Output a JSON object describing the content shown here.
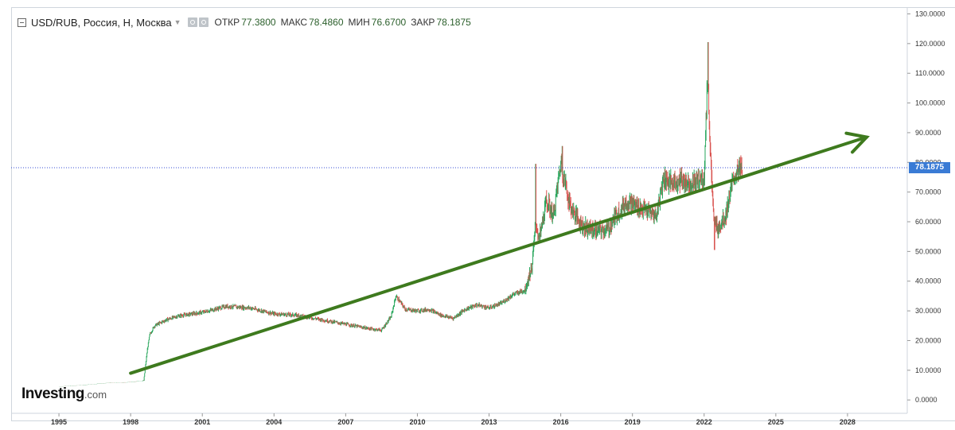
{
  "header": {
    "symbol": "USD/RUB, Россия, Н, Москва",
    "open_label": "ОТКР",
    "open_value": "77.3800",
    "high_label": "МАКС",
    "high_value": "78.4860",
    "low_label": "МИН",
    "low_value": "76.6700",
    "close_label": "ЗАКР",
    "close_value": "78.1875"
  },
  "logo": {
    "main": "Investing",
    "suffix": ".com"
  },
  "current_price_label": "78.1875",
  "colors": {
    "up": "#26a65b",
    "down": "#d9534f",
    "trend_arrow": "#3e7a1e",
    "price_line": "#3a4fd6",
    "badge": "#3a7bd5"
  },
  "chart_data": {
    "type": "candlestick",
    "x_axis": {
      "min": 1993.0,
      "max": 2030.5,
      "ticks": [
        "1995",
        "1998",
        "2001",
        "2004",
        "2007",
        "2010",
        "2013",
        "2016",
        "2019",
        "2022",
        "2025",
        "2028"
      ]
    },
    "y_axis": {
      "min": -4.5,
      "max": 132,
      "position": "right",
      "ticks": [
        "0.0000",
        "10.0000",
        "20.0000",
        "30.0000",
        "40.0000",
        "50.0000",
        "60.0000",
        "70.0000",
        "80.0000",
        "90.0000",
        "100.0000",
        "110.0000",
        "120.0000",
        "130.0000"
      ]
    },
    "grid": false,
    "current_price": 78.1875,
    "series": [
      {
        "t": [
          1995.0,
          1996.0,
          1997.0,
          1998.0,
          1998.55,
          1998.7,
          1998.8,
          1999.0,
          1999.5,
          2000.0,
          2001.0,
          2002.0,
          2003.0,
          2004.0,
          2005.0,
          2006.0,
          2007.0,
          2008.0,
          2008.5,
          2008.9,
          2009.1,
          2009.5,
          2010.0,
          2010.5,
          2011.0,
          2011.5,
          2012.0,
          2012.5,
          2013.0,
          2013.5,
          2014.0,
          2014.5,
          2014.8,
          2014.95,
          2015.1,
          2015.4,
          2015.7,
          2016.0,
          2016.4,
          2016.8,
          2017.0,
          2017.5,
          2018.0,
          2018.3,
          2018.8,
          2019.0,
          2019.5,
          2020.0,
          2020.3,
          2020.6,
          2021.0,
          2021.5,
          2022.0,
          2022.15,
          2022.25,
          2022.4,
          2022.6,
          2022.9,
          2023.1,
          2023.3,
          2023.6
        ],
        "close": [
          4.5,
          5.0,
          5.7,
          6.0,
          6.5,
          17.0,
          22.0,
          25.0,
          27.0,
          28.3,
          29.5,
          31.5,
          31.0,
          29.0,
          28.5,
          27.0,
          25.5,
          24.0,
          23.5,
          28.0,
          35.0,
          30.5,
          30.0,
          30.5,
          28.5,
          27.5,
          30.5,
          32.0,
          31.0,
          32.5,
          35.5,
          37.0,
          45.0,
          60.0,
          54.0,
          67.0,
          62.0,
          80.0,
          65.0,
          60.0,
          58.0,
          57.0,
          57.5,
          62.0,
          67.0,
          66.0,
          64.0,
          62.0,
          75.0,
          73.0,
          74.0,
          73.0,
          75.0,
          110.0,
          85.0,
          60.0,
          58.0,
          62.0,
          70.0,
          76.0,
          78.2
        ]
      }
    ],
    "annotations": [
      {
        "type": "trend_arrow",
        "from": [
          1998.0,
          9.0
        ],
        "to": [
          2028.8,
          88.5
        ]
      }
    ]
  }
}
